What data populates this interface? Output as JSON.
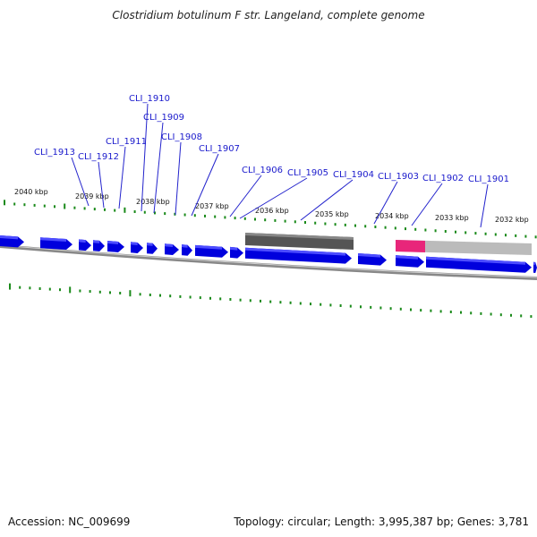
{
  "title": "Clostridium botulinum F str. Langeland, complete genome",
  "footer": {
    "accession": "Accession: NC_009699",
    "summary": "Topology: circular; Length: 3,995,387 bp; Genes: 3,781"
  },
  "colors": {
    "gene": "#0000dd",
    "gene_highlight": "#4d4dff",
    "tick": "#1a8a1a",
    "label": "#1a1acc",
    "backbone": "#777777",
    "feature_dark": "#555555",
    "feature_light": "#bbbbbb",
    "feature_accent": "#ee2277"
  },
  "scale_labels": [
    "2040 kbp",
    "2039 kbp",
    "2038 kbp",
    "2037 kbp",
    "2036 kbp",
    "2035 kbp",
    "2034 kbp",
    "2033 kbp",
    "2032 kbp"
  ],
  "gene_labels": [
    "CLI_1910",
    "CLI_1909",
    "CLI_1908",
    "CLI_1907",
    "CLI_1913",
    "CLI_1912",
    "CLI_1911",
    "CLI_1906",
    "CLI_1905",
    "CLI_1904",
    "CLI_1903",
    "CLI_1902",
    "CLI_1901"
  ]
}
